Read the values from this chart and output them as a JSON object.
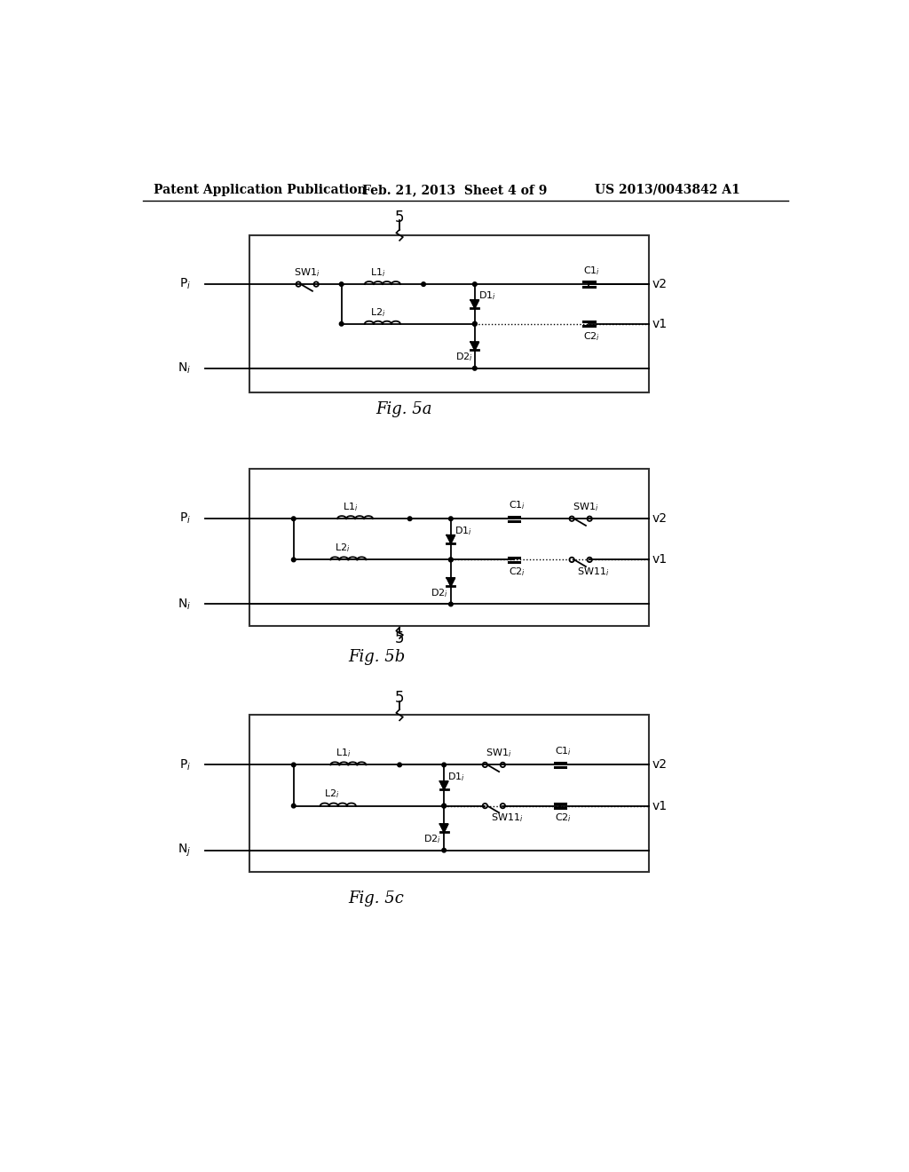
{
  "header_left": "Patent Application Publication",
  "header_mid": "Feb. 21, 2013  Sheet 4 of 9",
  "header_right": "US 2013/0043842 A1",
  "fig_labels": [
    "Fig. 5a",
    "Fig. 5b",
    "Fig. 5c"
  ],
  "background": "#ffffff"
}
